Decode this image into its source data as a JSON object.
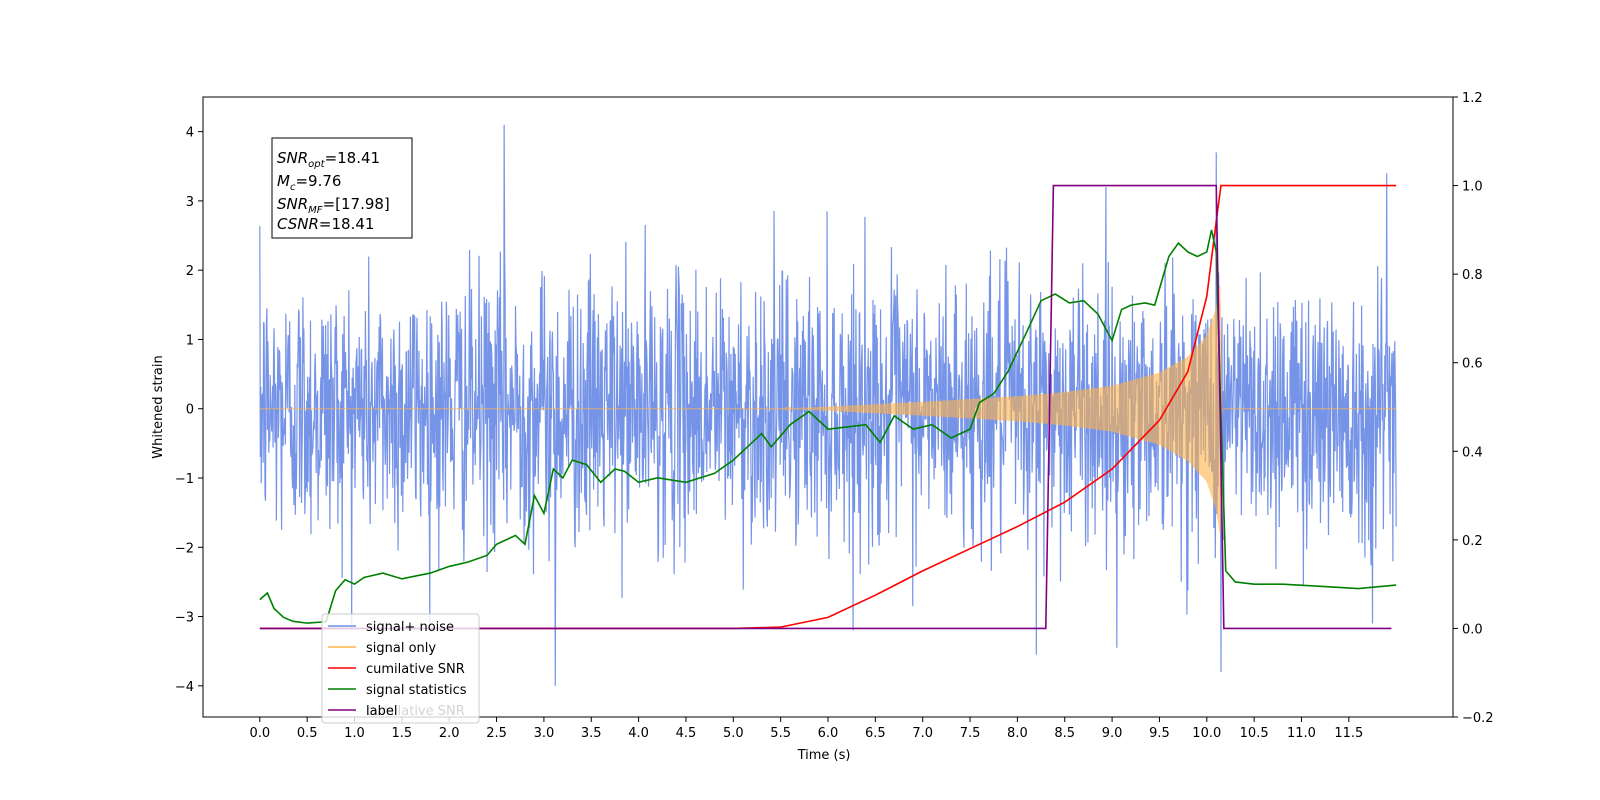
{
  "chart_data": {
    "type": "line",
    "xlabel": "Time (s)",
    "ylabel": "Whitened strain",
    "xlim": [
      -0.6,
      12.6
    ],
    "ylim": [
      -4.45,
      4.5
    ],
    "y2lim": [
      -0.2,
      1.2
    ],
    "x_ticks": [
      "0.0",
      "0.5",
      "1.0",
      "1.5",
      "2.0",
      "2.5",
      "3.0",
      "3.5",
      "4.0",
      "4.5",
      "5.0",
      "5.5",
      "6.0",
      "6.5",
      "7.0",
      "7.5",
      "8.0",
      "8.5",
      "9.0",
      "9.5",
      "10.0",
      "10.5",
      "11.0",
      "11.5"
    ],
    "y_ticks": [
      "4",
      "3",
      "2",
      "1",
      "0",
      "−1",
      "−2",
      "−3",
      "−4"
    ],
    "y2_ticks": [
      "1.2",
      "1.0",
      "0.8",
      "0.6",
      "0.4",
      "0.2",
      "0.0",
      "−0.2"
    ],
    "grid": false,
    "legend_placement": "lower-left",
    "annotation": {
      "snr_opt_base": "SNR",
      "snr_opt_sub": "opt",
      "snr_opt_value": "=18.41",
      "mc_base": "M",
      "mc_sub": "c",
      "mc_value": "=9.76",
      "snr_mf_base": "SNR",
      "snr_mf_sub": "MF",
      "snr_mf_value": "=[17.98]",
      "csnr_base": "CSNR",
      "csnr_value": "=18.41"
    },
    "series": [
      {
        "name": "signal+ noise",
        "color": "#6f8ee6",
        "axis": "left",
        "x_start": 0.0,
        "x_end": 12.0,
        "std": 1.0,
        "spikes": [
          {
            "x": 2.58,
            "y": 4.1
          },
          {
            "x": 10.1,
            "y": 3.7
          },
          {
            "x": 11.9,
            "y": 3.4
          },
          {
            "x": 3.12,
            "y": -4.0
          },
          {
            "x": 10.15,
            "y": -3.8
          },
          {
            "x": 9.05,
            "y": -3.45
          },
          {
            "x": 8.2,
            "y": -3.55
          },
          {
            "x": 11.75,
            "y": -3.1
          }
        ]
      },
      {
        "name": "signal only",
        "color": "#ffb347",
        "axis": "left",
        "envelope": [
          [
            5.5,
            0.0
          ],
          [
            6.0,
            0.03
          ],
          [
            7.0,
            0.1
          ],
          [
            8.0,
            0.18
          ],
          [
            8.5,
            0.24
          ],
          [
            9.0,
            0.33
          ],
          [
            9.5,
            0.52
          ],
          [
            9.8,
            0.75
          ],
          [
            10.0,
            1.05
          ],
          [
            10.1,
            1.45
          ],
          [
            10.14,
            1.8
          ],
          [
            10.16,
            0.0
          ],
          [
            12.0,
            0.0
          ]
        ]
      },
      {
        "name": "cumilative SNR",
        "color": "#ff0000",
        "axis": "right",
        "x": [
          0.0,
          5.0,
          5.5,
          6.0,
          6.5,
          7.0,
          7.5,
          8.0,
          8.5,
          9.0,
          9.5,
          9.8,
          10.0,
          10.1,
          10.15,
          12.0
        ],
        "values": [
          0.0,
          0.0,
          0.003,
          0.025,
          0.075,
          0.13,
          0.18,
          0.23,
          0.285,
          0.36,
          0.47,
          0.58,
          0.75,
          0.92,
          1.0,
          1.0
        ]
      },
      {
        "name": "signal statistics",
        "color": "#008000",
        "axis": "right",
        "x": [
          0.0,
          0.08,
          0.15,
          0.25,
          0.35,
          0.5,
          0.7,
          0.8,
          0.9,
          1.0,
          1.1,
          1.3,
          1.5,
          1.8,
          2.0,
          2.2,
          2.4,
          2.5,
          2.6,
          2.7,
          2.8,
          2.9,
          3.0,
          3.1,
          3.2,
          3.3,
          3.45,
          3.6,
          3.75,
          3.85,
          4.0,
          4.2,
          4.5,
          4.8,
          5.0,
          5.2,
          5.3,
          5.4,
          5.6,
          5.8,
          6.0,
          6.2,
          6.4,
          6.55,
          6.7,
          6.9,
          7.1,
          7.3,
          7.5,
          7.6,
          7.75,
          7.9,
          8.0,
          8.1,
          8.25,
          8.4,
          8.55,
          8.7,
          8.85,
          9.0,
          9.1,
          9.2,
          9.35,
          9.45,
          9.6,
          9.7,
          9.8,
          9.9,
          10.0,
          10.05,
          10.1,
          10.15,
          10.2,
          10.3,
          10.5,
          10.8,
          11.2,
          11.6,
          12.0
        ],
        "values": [
          0.065,
          0.08,
          0.045,
          0.025,
          0.016,
          0.012,
          0.015,
          0.085,
          0.11,
          0.1,
          0.115,
          0.125,
          0.112,
          0.125,
          0.14,
          0.15,
          0.165,
          0.19,
          0.2,
          0.21,
          0.19,
          0.3,
          0.26,
          0.36,
          0.34,
          0.38,
          0.37,
          0.33,
          0.36,
          0.355,
          0.33,
          0.34,
          0.33,
          0.35,
          0.38,
          0.42,
          0.44,
          0.41,
          0.46,
          0.49,
          0.45,
          0.455,
          0.46,
          0.42,
          0.48,
          0.45,
          0.46,
          0.43,
          0.45,
          0.51,
          0.53,
          0.58,
          0.625,
          0.67,
          0.74,
          0.755,
          0.735,
          0.74,
          0.71,
          0.65,
          0.72,
          0.73,
          0.735,
          0.73,
          0.84,
          0.87,
          0.85,
          0.84,
          0.85,
          0.9,
          0.85,
          0.48,
          0.13,
          0.105,
          0.1,
          0.1,
          0.095,
          0.09,
          0.098
        ]
      },
      {
        "name": "label",
        "color": "#800080",
        "axis": "right",
        "x": [
          0.0,
          8.3,
          8.38,
          10.1,
          10.18,
          11.95
        ],
        "values": [
          0.0,
          0.0,
          1.0,
          1.0,
          0.0,
          0.0
        ]
      }
    ],
    "hidden_legend_text": "cumilative SNR"
  }
}
